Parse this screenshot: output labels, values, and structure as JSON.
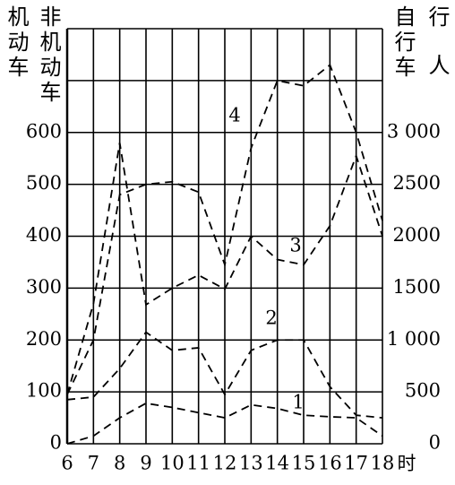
{
  "chart_data": {
    "type": "line",
    "ylabel": "机动车",
    "ylabel2": "非机动车",
    "y2label": "自行车",
    "y2label2": "行人",
    "xlabel": "时",
    "x": [
      6,
      7,
      8,
      9,
      10,
      11,
      12,
      13,
      14,
      15,
      16,
      17,
      18
    ],
    "xlim": [
      6,
      18
    ],
    "xticks": [
      6,
      7,
      8,
      9,
      10,
      11,
      12,
      13,
      14,
      15,
      16,
      17,
      18
    ],
    "ylim": [
      0,
      800
    ],
    "yticks": [
      0,
      100,
      200,
      300,
      400,
      500,
      600
    ],
    "ygrid": [
      0,
      100,
      200,
      300,
      400,
      500,
      600,
      700,
      800
    ],
    "y2lim": [
      0,
      4000
    ],
    "y2ticks": [
      0,
      500,
      {
        "value": 1000,
        "label": "1 000"
      },
      1500,
      2000,
      2500,
      {
        "value": 3000,
        "label": "3 000"
      }
    ],
    "grid": true,
    "series": [
      {
        "name": "1",
        "color": "#000000",
        "values": [
          0,
          15,
          50,
          78,
          70,
          60,
          50,
          75,
          68,
          55,
          52,
          50,
          15
        ]
      },
      {
        "name": "2",
        "color": "#000000",
        "values": [
          85,
          90,
          145,
          215,
          180,
          185,
          95,
          180,
          200,
          200,
          110,
          55,
          50
        ]
      },
      {
        "name": "3",
        "color": "#000000",
        "values": [
          95,
          270,
          580,
          268,
          300,
          325,
          298,
          400,
          355,
          345,
          420,
          555,
          400
        ]
      },
      {
        "name": "4",
        "color": "#000000",
        "values": [
          95,
          200,
          480,
          500,
          505,
          485,
          345,
          570,
          700,
          690,
          730,
          600,
          430
        ]
      }
    ]
  }
}
